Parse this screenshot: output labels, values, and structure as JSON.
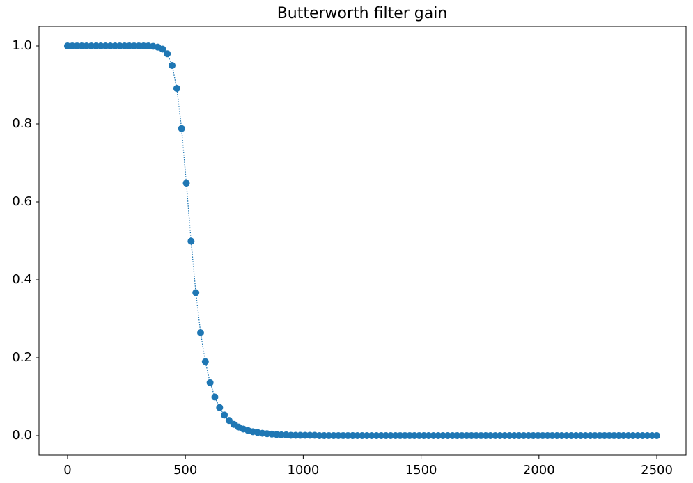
{
  "chart_data": {
    "type": "line",
    "title": "Butterworth filter gain",
    "x": [
      0,
      20.2,
      40.3,
      60.5,
      80.6,
      100.8,
      121.0,
      141.1,
      161.3,
      181.5,
      201.6,
      221.8,
      241.9,
      262.1,
      282.3,
      302.4,
      322.6,
      342.7,
      362.9,
      383.1,
      403.2,
      423.4,
      443.5,
      463.7,
      483.9,
      504.0,
      524.2,
      544.4,
      564.5,
      584.7,
      604.8,
      625.0,
      645.2,
      665.3,
      685.5,
      705.6,
      725.8,
      746.0,
      766.1,
      786.3,
      806.5,
      826.6,
      846.8,
      866.9,
      887.1,
      907.3,
      927.4,
      947.6,
      967.7,
      987.9,
      1008.1,
      1028.2,
      1048.4,
      1068.5,
      1088.7,
      1108.9,
      1129.0,
      1149.2,
      1169.4,
      1189.5,
      1209.7,
      1229.8,
      1250.0,
      1270.2,
      1290.3,
      1310.5,
      1330.6,
      1350.8,
      1371.0,
      1391.1,
      1411.3,
      1431.5,
      1451.6,
      1471.8,
      1491.9,
      1512.1,
      1532.3,
      1552.4,
      1572.6,
      1592.7,
      1612.9,
      1633.1,
      1653.2,
      1673.4,
      1693.5,
      1713.7,
      1733.9,
      1754.0,
      1774.2,
      1794.4,
      1814.5,
      1834.7,
      1854.8,
      1875.0,
      1895.2,
      1915.3,
      1935.5,
      1955.6,
      1975.8,
      1996.0,
      2016.1,
      2036.3,
      2056.5,
      2076.6,
      2096.8,
      2116.9,
      2137.1,
      2157.3,
      2177.4,
      2197.6,
      2217.7,
      2237.9,
      2258.1,
      2278.2,
      2298.4,
      2318.5,
      2338.7,
      2358.9,
      2379.0,
      2399.2,
      2419.4,
      2439.5,
      2459.7,
      2479.8,
      2500
    ],
    "values": [
      1,
      1,
      1,
      1,
      1,
      1,
      1,
      1,
      1,
      1,
      1,
      1,
      1,
      1,
      1,
      1,
      1,
      1,
      0.999,
      0.997,
      0.992,
      0.98,
      0.95,
      0.891,
      0.788,
      0.648,
      0.499,
      0.367,
      0.264,
      0.19,
      0.136,
      0.099,
      0.072,
      0.053,
      0.039,
      0.029,
      0.022,
      0.017,
      0.013,
      0.01,
      0.008,
      0.006,
      0.005,
      0.004,
      0.003,
      0.002,
      0.002,
      0.001,
      0.001,
      0.001,
      0.001,
      0.001,
      0.001,
      0,
      0,
      0,
      0,
      0,
      0,
      0,
      0,
      0,
      0,
      0,
      0,
      0,
      0,
      0,
      0,
      0,
      0,
      0,
      0,
      0,
      0,
      0,
      0,
      0,
      0,
      0,
      0,
      0,
      0,
      0,
      0,
      0,
      0,
      0,
      0,
      0,
      0,
      0,
      0,
      0,
      0,
      0,
      0,
      0,
      0,
      0,
      0,
      0,
      0,
      0,
      0,
      0,
      0,
      0,
      0,
      0,
      0,
      0,
      0,
      0,
      0,
      0,
      0,
      0,
      0,
      0,
      0,
      0,
      0,
      0,
      0
    ],
    "color": "#1f77b4",
    "line_style": "dotted",
    "marker": "circle",
    "xlim": [
      -121,
      2624
    ],
    "xticks": [
      0,
      500,
      1000,
      1500,
      2000,
      2500
    ],
    "ylim": [
      -0.05,
      1.05
    ],
    "yticks": [
      0.0,
      0.2,
      0.4,
      0.6,
      0.8,
      1.0
    ]
  }
}
